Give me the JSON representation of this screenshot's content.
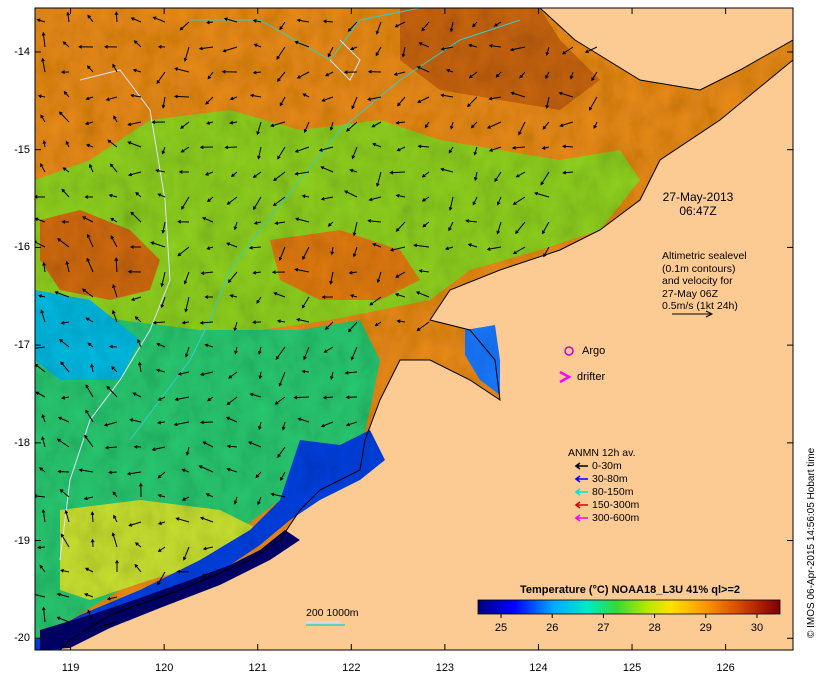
{
  "map": {
    "xticks": [
      "119",
      "120",
      "121",
      "122",
      "123",
      "124",
      "125",
      "126"
    ],
    "xtick_values": [
      119,
      120,
      121,
      122,
      123,
      124,
      125,
      126
    ],
    "yticks": [
      "-14",
      "-15",
      "-16",
      "-17",
      "-18",
      "-19",
      "-20"
    ],
    "ytick_values": [
      -14,
      -15,
      -16,
      -17,
      -18,
      -19,
      -20
    ],
    "lon_range": [
      118.62,
      126.72
    ],
    "lat_range": [
      -20.12,
      -13.55
    ],
    "datestamp": {
      "date": "27-May-2013",
      "time": "06:47Z"
    },
    "altimetry_note": [
      "Altimetric sealevel",
      "(0.1m contours)",
      "and velocity for",
      "27-May 06Z",
      "0.5m/s (1kt 24h)"
    ],
    "legend_argo": "Argo",
    "legend_drifter": "drifter",
    "anmn": {
      "title": "ANMN 12h av.",
      "items": [
        {
          "label": "0-30m",
          "color": "#000000"
        },
        {
          "label": "30-80m",
          "color": "#0000ff"
        },
        {
          "label": "80-150m",
          "color": "#00e0e0"
        },
        {
          "label": "150-300m",
          "color": "#e00000"
        },
        {
          "label": "300-600m",
          "color": "#ff00ff"
        }
      ]
    },
    "bathy_label": "200  1000m",
    "colorbar": {
      "title": "Temperature (°C) NOAA18_L3U 41% ql>=2",
      "ticks": [
        "25",
        "26",
        "27",
        "28",
        "29",
        "30"
      ],
      "tick_values": [
        25,
        26,
        27,
        28,
        29,
        30
      ],
      "range": [
        24.55,
        30.45
      ]
    },
    "credit": "© IMOS 06-Apr-2015 14:56:05 Hobart time",
    "colors": {
      "land": "#fccb94",
      "argo": "#cc00cc",
      "drifter": "#ff00ff",
      "bathy_200": "#d8d8ff",
      "bathy_1000": "#30d0c8"
    }
  }
}
